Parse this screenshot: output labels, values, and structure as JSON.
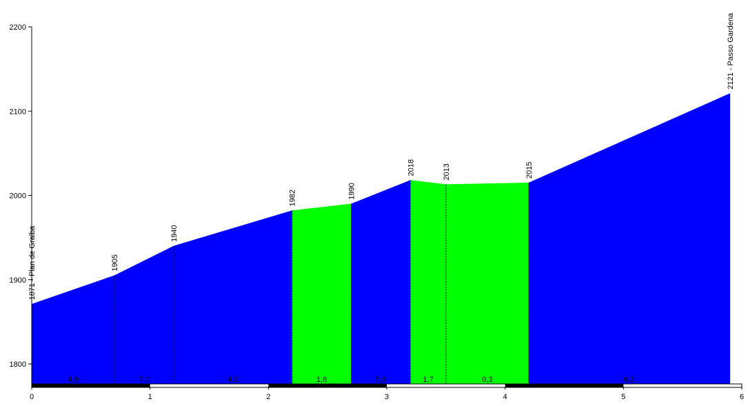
{
  "chart_data": {
    "type": "area",
    "title": "",
    "xlabel": "",
    "ylabel": "",
    "xlim": [
      0,
      6
    ],
    "ylim": [
      1775,
      2200
    ],
    "x_ticks": [
      "0",
      "1",
      "2",
      "3",
      "4",
      "5",
      "6"
    ],
    "y_ticks": [
      "1800",
      "1900",
      "2000",
      "2100",
      "2200"
    ],
    "colors": {
      "climb": "#0000ff",
      "flat": "#00ff00",
      "axis": "#000000"
    },
    "points": [
      {
        "x": 0.0,
        "y": 1871,
        "label": "1871 - Plan de Gralba"
      },
      {
        "x": 0.7,
        "y": 1905,
        "label": "1905"
      },
      {
        "x": 1.2,
        "y": 1940,
        "label": "1940"
      },
      {
        "x": 2.2,
        "y": 1982,
        "label": "1982"
      },
      {
        "x": 2.7,
        "y": 1990,
        "label": "1990"
      },
      {
        "x": 3.2,
        "y": 2018,
        "label": "2018"
      },
      {
        "x": 3.5,
        "y": 2013,
        "label": "2013"
      },
      {
        "x": 4.2,
        "y": 2015,
        "label": "2015"
      },
      {
        "x": 5.9,
        "y": 2121,
        "label": "2121 - Passo Gardena"
      }
    ],
    "segments": [
      {
        "gradient": "4,9",
        "color": "climb"
      },
      {
        "gradient": "7,0",
        "color": "climb"
      },
      {
        "gradient": "4,2",
        "color": "climb"
      },
      {
        "gradient": "1,6",
        "color": "flat"
      },
      {
        "gradient": "5,6",
        "color": "climb"
      },
      {
        "gradient": "1,7",
        "color": "flat"
      },
      {
        "gradient": "0,3",
        "color": "flat"
      },
      {
        "gradient": "6,2",
        "color": "climb"
      }
    ],
    "km_bar": "alternating black/white per km"
  }
}
